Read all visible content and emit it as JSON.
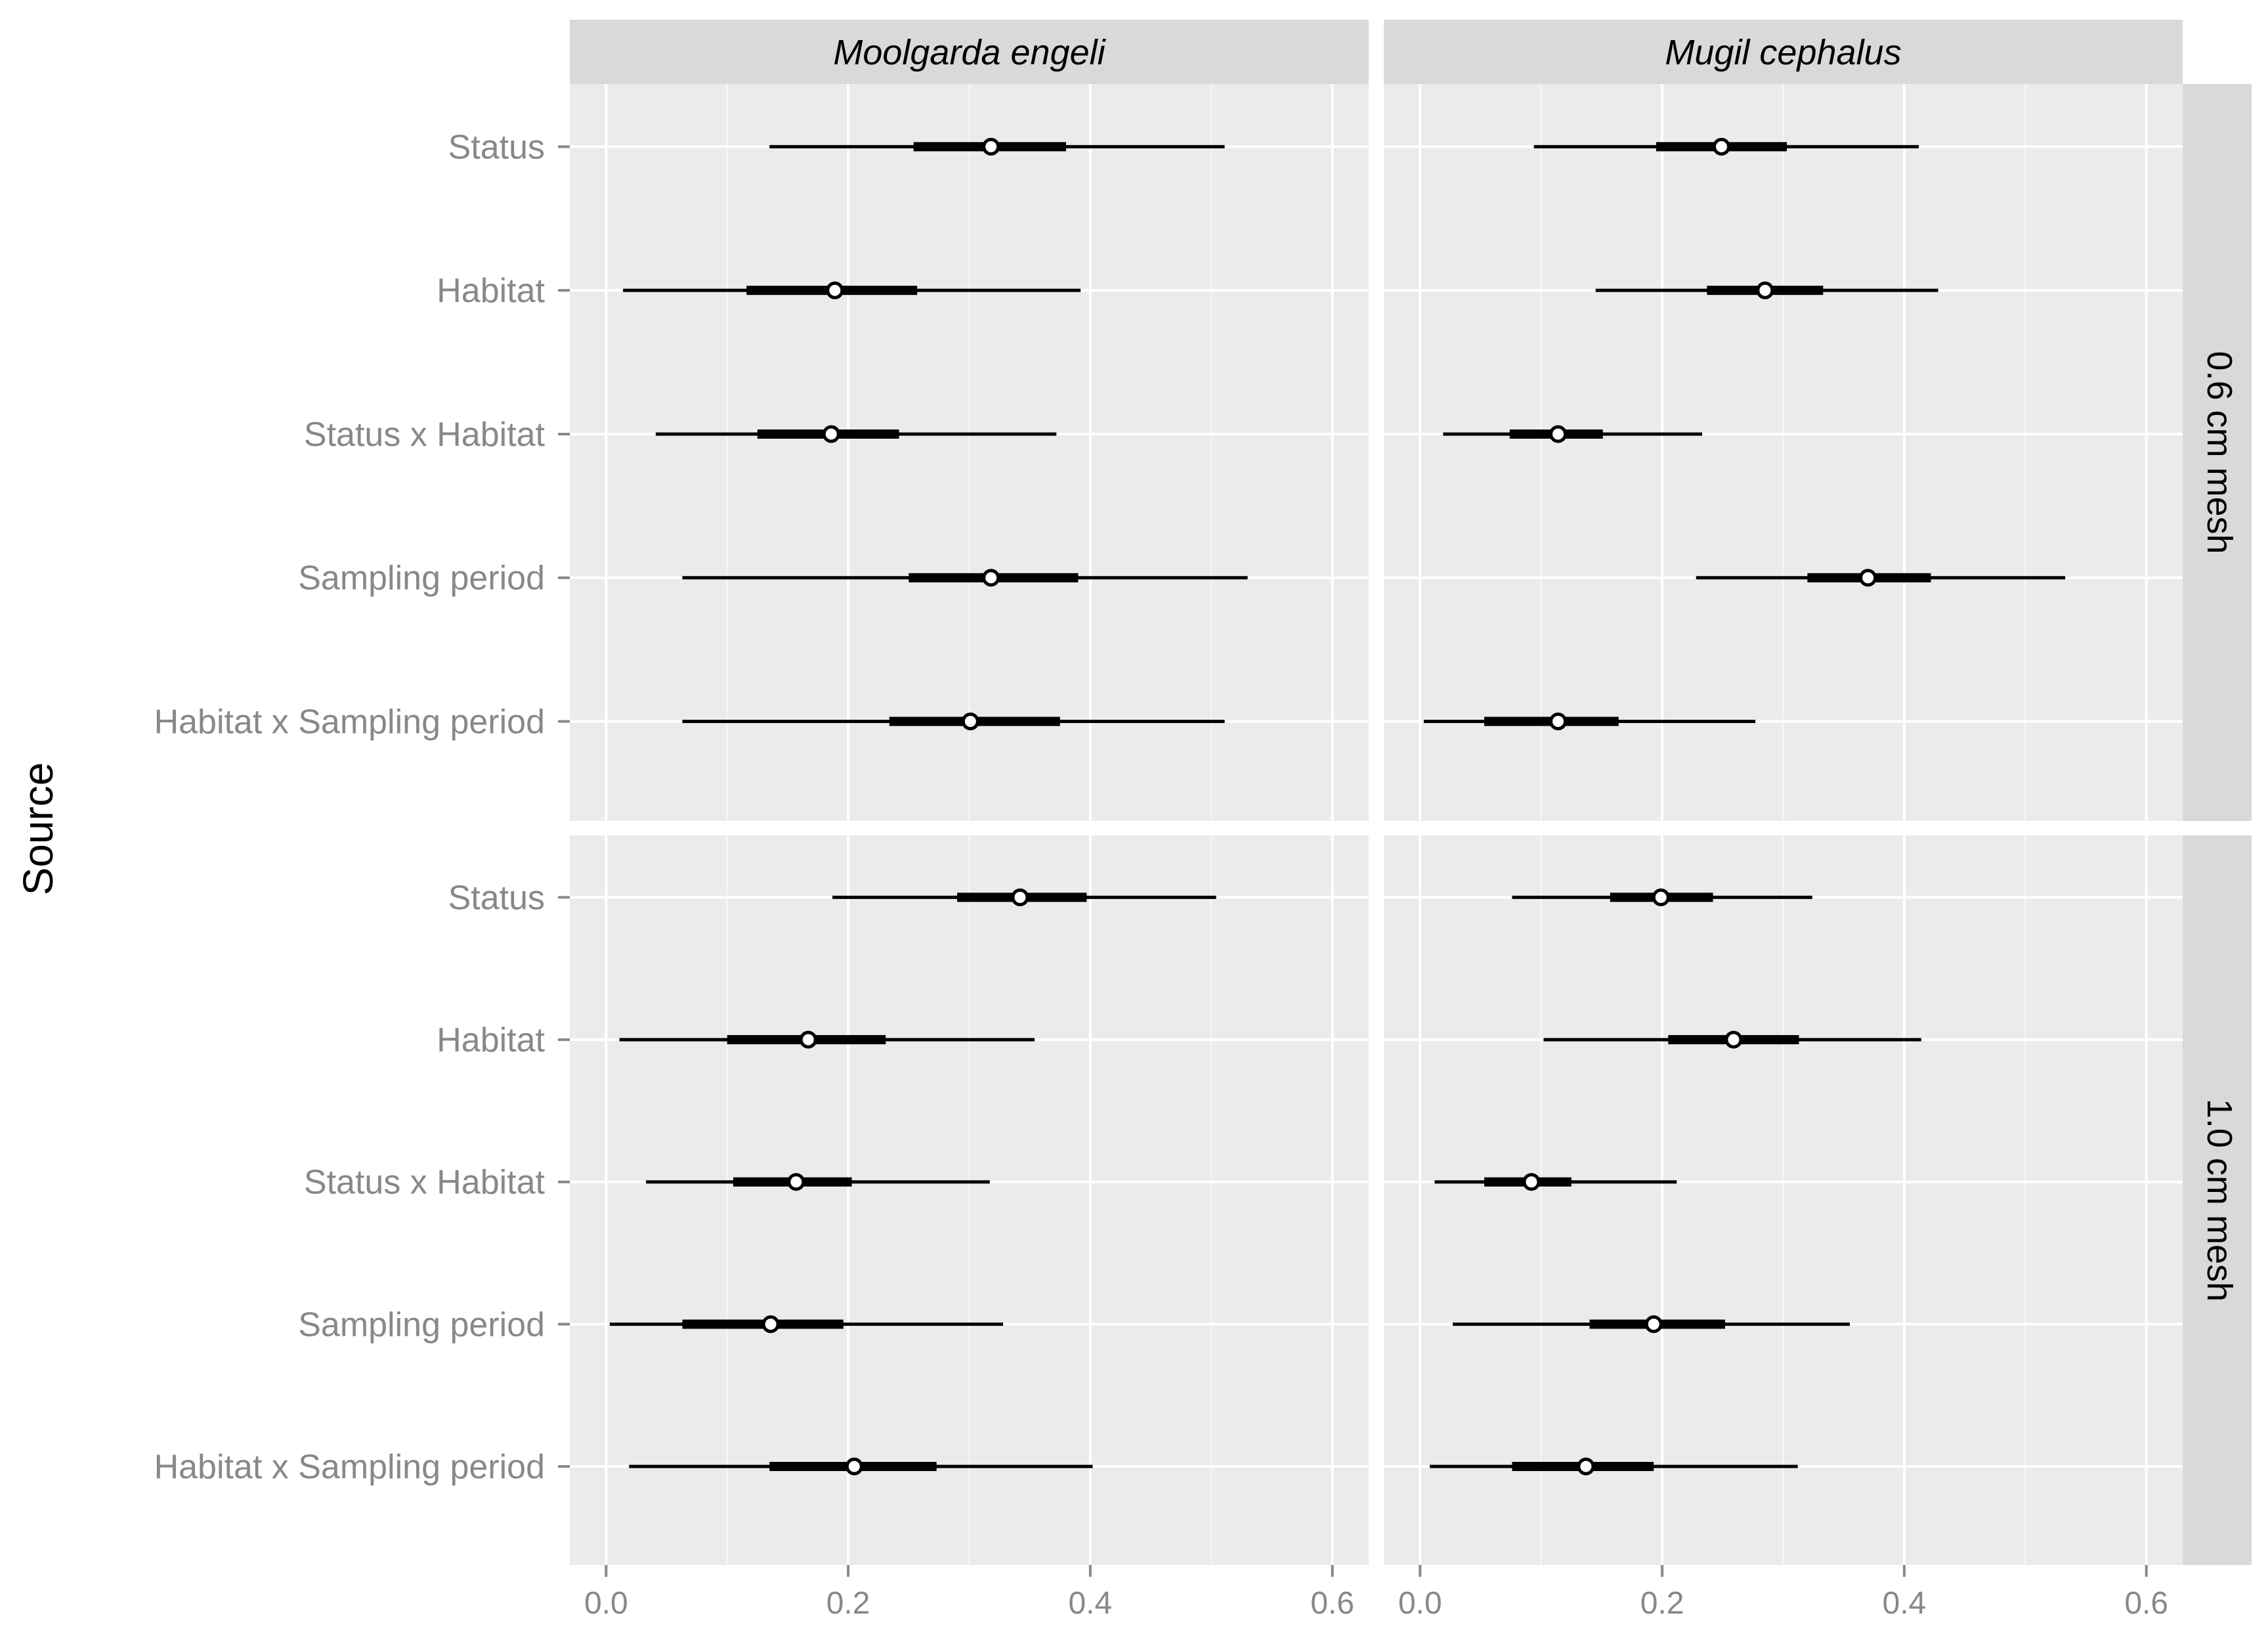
{
  "chart_data": {
    "type": "forest",
    "ylabel": "Source",
    "xlim": [
      -0.03,
      0.63
    ],
    "xticks": [
      0.0,
      0.2,
      0.4,
      0.6
    ],
    "xtick_labels": [
      "0.0",
      "0.2",
      "0.4",
      "0.6"
    ],
    "columns": [
      "Moolgarda engeli",
      "Mugil cephalus"
    ],
    "rows": [
      "0.6 cm mesh",
      "1.0 cm mesh"
    ],
    "sources": [
      "Status",
      "Habitat",
      "Status x Habitat",
      "Sampling period",
      "Habitat x Sampling period"
    ],
    "panels": [
      {
        "species": "Moolgarda engeli",
        "mesh": "0.6 cm mesh",
        "estimates": [
          {
            "source": "Status",
            "median": 0.318,
            "q25": 0.254,
            "q75": 0.38,
            "low": 0.135,
            "high": 0.511
          },
          {
            "source": "Habitat",
            "median": 0.189,
            "q25": 0.116,
            "q75": 0.257,
            "low": 0.014,
            "high": 0.392
          },
          {
            "source": "Status x Habitat",
            "median": 0.186,
            "q25": 0.125,
            "q75": 0.242,
            "low": 0.041,
            "high": 0.372
          },
          {
            "source": "Sampling period",
            "median": 0.318,
            "q25": 0.25,
            "q75": 0.39,
            "low": 0.063,
            "high": 0.53
          },
          {
            "source": "Habitat x Sampling period",
            "median": 0.301,
            "q25": 0.234,
            "q75": 0.375,
            "low": 0.063,
            "high": 0.511
          }
        ]
      },
      {
        "species": "Mugil cephalus",
        "mesh": "0.6 cm mesh",
        "estimates": [
          {
            "source": "Status",
            "median": 0.249,
            "q25": 0.195,
            "q75": 0.303,
            "low": 0.094,
            "high": 0.412
          },
          {
            "source": "Habitat",
            "median": 0.285,
            "q25": 0.237,
            "q75": 0.333,
            "low": 0.145,
            "high": 0.428
          },
          {
            "source": "Status x Habitat",
            "median": 0.114,
            "q25": 0.074,
            "q75": 0.151,
            "low": 0.019,
            "high": 0.233
          },
          {
            "source": "Sampling period",
            "median": 0.37,
            "q25": 0.32,
            "q75": 0.422,
            "low": 0.228,
            "high": 0.533
          },
          {
            "source": "Habitat x Sampling period",
            "median": 0.114,
            "q25": 0.053,
            "q75": 0.164,
            "low": 0.003,
            "high": 0.277
          }
        ]
      },
      {
        "species": "Moolgarda engeli",
        "mesh": "1.0 cm mesh",
        "estimates": [
          {
            "source": "Status",
            "median": 0.342,
            "q25": 0.29,
            "q75": 0.397,
            "low": 0.187,
            "high": 0.504
          },
          {
            "source": "Habitat",
            "median": 0.167,
            "q25": 0.1,
            "q75": 0.231,
            "low": 0.011,
            "high": 0.354
          },
          {
            "source": "Status x Habitat",
            "median": 0.157,
            "q25": 0.105,
            "q75": 0.203,
            "low": 0.033,
            "high": 0.317
          },
          {
            "source": "Sampling period",
            "median": 0.136,
            "q25": 0.063,
            "q75": 0.196,
            "low": 0.003,
            "high": 0.328
          },
          {
            "source": "Habitat x Sampling period",
            "median": 0.205,
            "q25": 0.135,
            "q75": 0.273,
            "low": 0.019,
            "high": 0.402
          }
        ]
      },
      {
        "species": "Mugil cephalus",
        "mesh": "1.0 cm mesh",
        "estimates": [
          {
            "source": "Status",
            "median": 0.199,
            "q25": 0.157,
            "q75": 0.242,
            "low": 0.076,
            "high": 0.324
          },
          {
            "source": "Habitat",
            "median": 0.259,
            "q25": 0.205,
            "q75": 0.313,
            "low": 0.102,
            "high": 0.414
          },
          {
            "source": "Status x Habitat",
            "median": 0.092,
            "q25": 0.053,
            "q75": 0.125,
            "low": 0.012,
            "high": 0.212
          },
          {
            "source": "Sampling period",
            "median": 0.193,
            "q25": 0.14,
            "q75": 0.252,
            "low": 0.027,
            "high": 0.355
          },
          {
            "source": "Habitat x Sampling period",
            "median": 0.137,
            "q25": 0.076,
            "q75": 0.193,
            "low": 0.008,
            "high": 0.312
          }
        ]
      }
    ],
    "colors": {
      "panel_bg": "#ebebeb",
      "strip_bg": "#d9d9d9",
      "grid": "#ffffff",
      "mark": "#000000",
      "point_fill": "#ffffff",
      "label": "#888888"
    }
  }
}
